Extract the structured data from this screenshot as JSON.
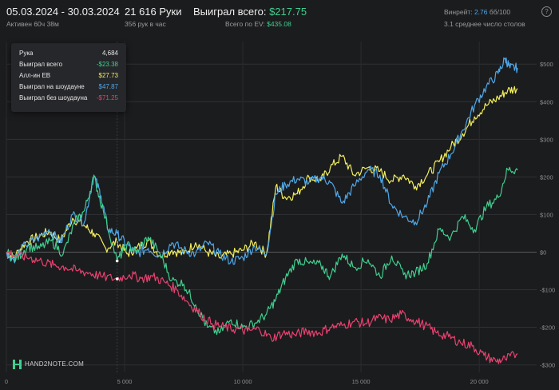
{
  "header": {
    "date_range": "05.03.2024 - 30.03.2024",
    "active_time": "Активен 60ч 38м",
    "hands": "21 616 Руки",
    "hands_per_hour": "356 рук в час",
    "won_label": "Выиграл всего: ",
    "won_value": "$217.75",
    "ev_label": "Всего по EV: ",
    "ev_value": "$435.08",
    "winrate_label": "Винрейт: ",
    "winrate_value": "2.76",
    "winrate_unit": " бб/100",
    "tables": "3.1 среднее число столов",
    "help_icon": "?"
  },
  "tooltip": {
    "hand_label": "Рука",
    "hand_value": "4,684",
    "rows": [
      {
        "label": "Выиграл всего",
        "value": "-$23.38",
        "color": "#3fcf8e"
      },
      {
        "label": "Алл-ин EB",
        "value": "$27.73",
        "color": "#f2ee5a"
      },
      {
        "label": "Выиграл на шоудауне",
        "value": "$47.87",
        "color": "#4ea7e8"
      },
      {
        "label": "Выиграл без шоудауна",
        "value": "-$71.25",
        "color": "#e8416f"
      }
    ]
  },
  "brand": {
    "text": "HAND2NOTE.COM",
    "icon": "hand2note-logo-icon"
  },
  "colors": {
    "total": "#3fcf8e",
    "allin_ev": "#f2ee5a",
    "showdown": "#4ea7e8",
    "non_showdown": "#e8416f"
  },
  "chart_data": {
    "type": "line",
    "x_ticks": [
      0,
      5000,
      10000,
      15000,
      20000
    ],
    "x_tick_labels": [
      "0",
      "5 000",
      "10 000",
      "15 000",
      "20 000"
    ],
    "y_ticks": [
      -300,
      -200,
      -100,
      0,
      100,
      200,
      300,
      400,
      500
    ],
    "y_tick_labels": [
      "-$300",
      "-$200",
      "-$100",
      "$0",
      "$100",
      "$200",
      "$300",
      "$400",
      "$500"
    ],
    "xlim": [
      0,
      21616
    ],
    "ylim": [
      -320,
      560
    ],
    "grid": true,
    "marker_hand": 4684,
    "series": [
      {
        "key": "allin_ev",
        "points": [
          [
            0,
            0
          ],
          [
            300,
            -15
          ],
          [
            800,
            25
          ],
          [
            1300,
            40
          ],
          [
            1800,
            55
          ],
          [
            2300,
            30
          ],
          [
            2800,
            90
          ],
          [
            3300,
            70
          ],
          [
            3700,
            50
          ],
          [
            4200,
            10
          ],
          [
            4684,
            27.73
          ],
          [
            5100,
            -5
          ],
          [
            5500,
            10
          ],
          [
            6000,
            30
          ],
          [
            6500,
            -10
          ],
          [
            7000,
            5
          ],
          [
            7500,
            -5
          ],
          [
            8000,
            25
          ],
          [
            8500,
            0
          ],
          [
            9000,
            -15
          ],
          [
            9500,
            -5
          ],
          [
            10000,
            5
          ],
          [
            10500,
            25
          ],
          [
            11000,
            -5
          ],
          [
            11400,
            175
          ],
          [
            11800,
            145
          ],
          [
            12300,
            155
          ],
          [
            12800,
            200
          ],
          [
            13300,
            190
          ],
          [
            13700,
            225
          ],
          [
            14200,
            255
          ],
          [
            14700,
            205
          ],
          [
            15300,
            225
          ],
          [
            15800,
            215
          ],
          [
            16300,
            190
          ],
          [
            16800,
            205
          ],
          [
            17300,
            175
          ],
          [
            17800,
            205
          ],
          [
            18300,
            240
          ],
          [
            18800,
            280
          ],
          [
            19300,
            315
          ],
          [
            19800,
            360
          ],
          [
            20300,
            390
          ],
          [
            20800,
            410
          ],
          [
            21200,
            430
          ],
          [
            21616,
            435.08
          ]
        ]
      },
      {
        "key": "showdown",
        "points": [
          [
            0,
            0
          ],
          [
            300,
            -20
          ],
          [
            800,
            20
          ],
          [
            1300,
            35
          ],
          [
            1800,
            60
          ],
          [
            2300,
            25
          ],
          [
            2800,
            100
          ],
          [
            3300,
            80
          ],
          [
            3700,
            205
          ],
          [
            4000,
            150
          ],
          [
            4300,
            60
          ],
          [
            4684,
            47.87
          ],
          [
            5100,
            20
          ],
          [
            5500,
            -5
          ],
          [
            6000,
            10
          ],
          [
            6500,
            -10
          ],
          [
            7000,
            25
          ],
          [
            7500,
            5
          ],
          [
            8000,
            -5
          ],
          [
            8500,
            25
          ],
          [
            9000,
            -5
          ],
          [
            9500,
            -25
          ],
          [
            10000,
            -15
          ],
          [
            10500,
            15
          ],
          [
            11000,
            -5
          ],
          [
            11400,
            155
          ],
          [
            11800,
            180
          ],
          [
            12300,
            195
          ],
          [
            12800,
            185
          ],
          [
            13300,
            200
          ],
          [
            13700,
            185
          ],
          [
            14200,
            130
          ],
          [
            14700,
            175
          ],
          [
            15300,
            220
          ],
          [
            15800,
            205
          ],
          [
            16300,
            125
          ],
          [
            16800,
            95
          ],
          [
            17300,
            80
          ],
          [
            17800,
            130
          ],
          [
            18300,
            210
          ],
          [
            18800,
            260
          ],
          [
            19300,
            325
          ],
          [
            19800,
            390
          ],
          [
            20300,
            440
          ],
          [
            20800,
            475
          ],
          [
            21100,
            515
          ],
          [
            21300,
            490
          ],
          [
            21616,
            490
          ]
        ]
      },
      {
        "key": "total",
        "points": [
          [
            0,
            0
          ],
          [
            400,
            -20
          ],
          [
            900,
            15
          ],
          [
            1400,
            10
          ],
          [
            1900,
            30
          ],
          [
            2400,
            -5
          ],
          [
            2900,
            80
          ],
          [
            3300,
            110
          ],
          [
            3700,
            200
          ],
          [
            4100,
            110
          ],
          [
            4684,
            -23.38
          ],
          [
            5100,
            20
          ],
          [
            5500,
            0
          ],
          [
            6000,
            40
          ],
          [
            6500,
            -5
          ],
          [
            7000,
            -75
          ],
          [
            7500,
            -85
          ],
          [
            8000,
            -140
          ],
          [
            8500,
            -200
          ],
          [
            9000,
            -215
          ],
          [
            9500,
            -180
          ],
          [
            10000,
            -200
          ],
          [
            10500,
            -190
          ],
          [
            11000,
            -165
          ],
          [
            11400,
            -125
          ],
          [
            11800,
            -70
          ],
          [
            12300,
            -20
          ],
          [
            12800,
            -30
          ],
          [
            13300,
            -35
          ],
          [
            13700,
            -65
          ],
          [
            14200,
            -5
          ],
          [
            14700,
            -40
          ],
          [
            15300,
            -20
          ],
          [
            15800,
            -65
          ],
          [
            16300,
            -10
          ],
          [
            16800,
            -60
          ],
          [
            17300,
            -55
          ],
          [
            17800,
            -30
          ],
          [
            18300,
            60
          ],
          [
            18800,
            40
          ],
          [
            19300,
            95
          ],
          [
            19800,
            60
          ],
          [
            20300,
            120
          ],
          [
            20800,
            145
          ],
          [
            21200,
            220
          ],
          [
            21616,
            217.75
          ]
        ]
      },
      {
        "key": "non_showdown",
        "points": [
          [
            0,
            0
          ],
          [
            500,
            -10
          ],
          [
            1000,
            -15
          ],
          [
            1500,
            -25
          ],
          [
            2000,
            -35
          ],
          [
            2500,
            -40
          ],
          [
            3000,
            -50
          ],
          [
            3500,
            -55
          ],
          [
            4000,
            -65
          ],
          [
            4684,
            -71.25
          ],
          [
            5200,
            -60
          ],
          [
            5700,
            -70
          ],
          [
            6200,
            -65
          ],
          [
            6700,
            -80
          ],
          [
            7200,
            -100
          ],
          [
            7700,
            -135
          ],
          [
            8200,
            -165
          ],
          [
            8700,
            -190
          ],
          [
            9200,
            -200
          ],
          [
            9700,
            -205
          ],
          [
            10200,
            -210
          ],
          [
            10700,
            -205
          ],
          [
            11200,
            -230
          ],
          [
            11700,
            -215
          ],
          [
            12200,
            -220
          ],
          [
            12700,
            -210
          ],
          [
            13200,
            -215
          ],
          [
            13700,
            -200
          ],
          [
            14200,
            -195
          ],
          [
            14700,
            -185
          ],
          [
            15200,
            -190
          ],
          [
            15700,
            -175
          ],
          [
            16200,
            -180
          ],
          [
            16700,
            -165
          ],
          [
            17200,
            -180
          ],
          [
            17700,
            -195
          ],
          [
            18200,
            -215
          ],
          [
            18700,
            -225
          ],
          [
            19200,
            -240
          ],
          [
            19700,
            -250
          ],
          [
            20200,
            -275
          ],
          [
            20700,
            -290
          ],
          [
            21100,
            -285
          ],
          [
            21616,
            -270
          ]
        ]
      }
    ]
  }
}
